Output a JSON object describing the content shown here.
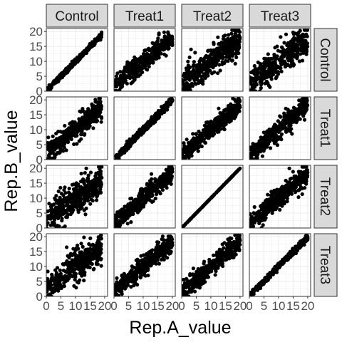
{
  "chart_data": {
    "type": "scatter",
    "layout": "facet-grid",
    "xlabel": "Rep.A_value",
    "ylabel": "Rep.B_value",
    "col_facets": [
      "Control",
      "Treat1",
      "Treat2",
      "Treat3"
    ],
    "row_facets": [
      "Control",
      "Treat1",
      "Treat2",
      "Treat3"
    ],
    "xlim": [
      0,
      21
    ],
    "ylim": [
      0,
      21
    ],
    "x_ticks": [
      0,
      5,
      10,
      15,
      20
    ],
    "y_ticks": [
      0,
      5,
      10,
      15,
      20
    ],
    "grid": true,
    "point_color": "#000000",
    "panel_border_color": "#333333",
    "strip_fill": "#d9d9d9",
    "gridline_color": "#ebebeb",
    "panels": [
      {
        "row": "Control",
        "col": "Control",
        "correlation": 0.99,
        "noise": 0.4,
        "x_range": [
          0,
          19
        ]
      },
      {
        "row": "Control",
        "col": "Treat1",
        "correlation": 0.8,
        "noise": 1.8,
        "x_range": [
          0,
          20
        ]
      },
      {
        "row": "Control",
        "col": "Treat2",
        "correlation": 0.7,
        "noise": 2.4,
        "x_range": [
          0,
          20
        ]
      },
      {
        "row": "Control",
        "col": "Treat3",
        "correlation": 0.7,
        "noise": 2.4,
        "x_range": [
          0,
          20
        ]
      },
      {
        "row": "Treat1",
        "col": "Control",
        "correlation": 0.8,
        "noise": 1.8,
        "x_range": [
          0,
          19
        ]
      },
      {
        "row": "Treat1",
        "col": "Treat1",
        "correlation": 0.99,
        "noise": 0.6,
        "x_range": [
          0,
          20
        ]
      },
      {
        "row": "Treat1",
        "col": "Treat2",
        "correlation": 0.85,
        "noise": 1.6,
        "x_range": [
          0,
          20
        ]
      },
      {
        "row": "Treat1",
        "col": "Treat3",
        "correlation": 0.85,
        "noise": 1.6,
        "x_range": [
          0,
          20
        ]
      },
      {
        "row": "Treat2",
        "col": "Control",
        "correlation": 0.7,
        "noise": 2.6,
        "x_range": [
          0,
          19
        ]
      },
      {
        "row": "Treat2",
        "col": "Treat1",
        "correlation": 0.85,
        "noise": 1.6,
        "x_range": [
          0,
          20
        ]
      },
      {
        "row": "Treat2",
        "col": "Treat2",
        "correlation": 1.0,
        "noise": 0.0,
        "x_range": [
          0,
          20
        ]
      },
      {
        "row": "Treat2",
        "col": "Treat3",
        "correlation": 0.85,
        "noise": 1.8,
        "x_range": [
          0,
          20
        ]
      },
      {
        "row": "Treat3",
        "col": "Control",
        "correlation": 0.7,
        "noise": 2.6,
        "x_range": [
          0,
          19
        ]
      },
      {
        "row": "Treat3",
        "col": "Treat1",
        "correlation": 0.85,
        "noise": 1.6,
        "x_range": [
          0,
          20
        ]
      },
      {
        "row": "Treat3",
        "col": "Treat2",
        "correlation": 0.85,
        "noise": 1.6,
        "x_range": [
          0,
          20
        ]
      },
      {
        "row": "Treat3",
        "col": "Treat3",
        "correlation": 0.99,
        "noise": 0.5,
        "x_range": [
          0,
          20
        ]
      }
    ]
  }
}
